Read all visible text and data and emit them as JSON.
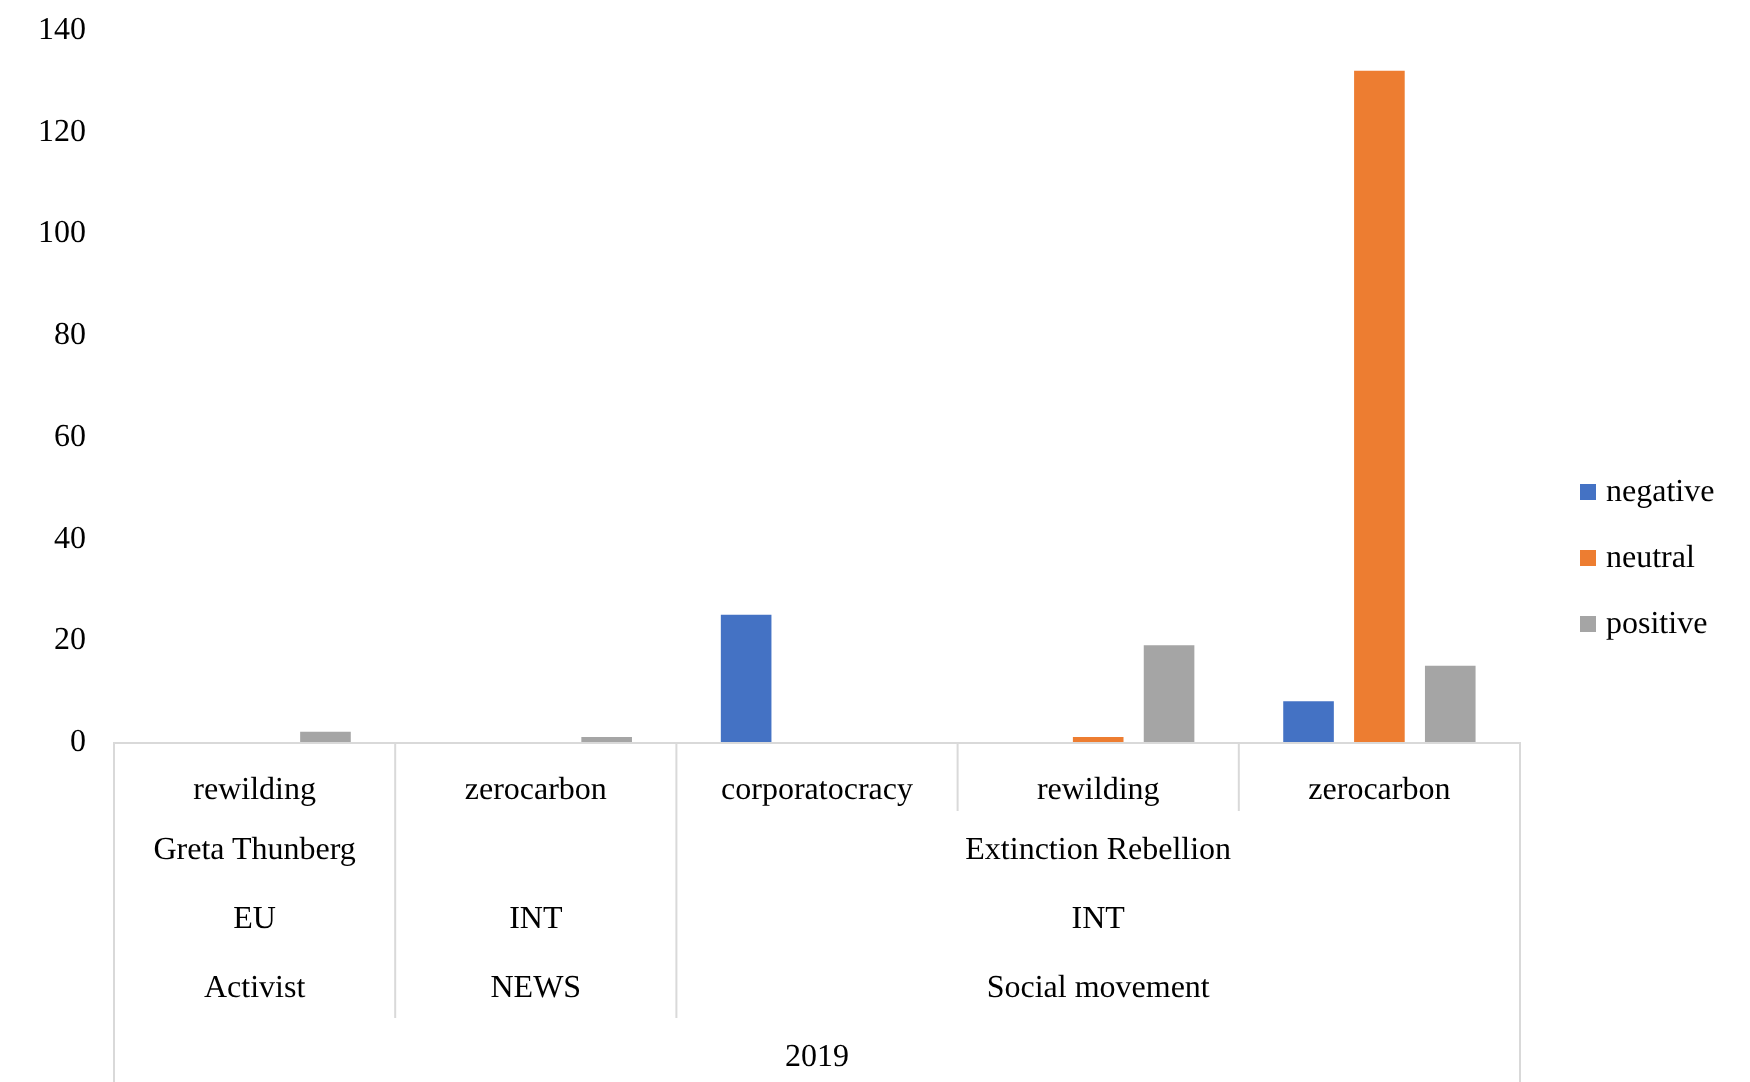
{
  "chart_data": {
    "type": "bar",
    "categories": [
      "rewilding",
      "zerocarbon",
      "corporatocracy",
      "rewilding",
      "zerocarbon"
    ],
    "series": [
      {
        "name": "negative",
        "color": "#4472c4",
        "values": [
          0,
          0,
          25,
          0,
          8
        ]
      },
      {
        "name": "neutral",
        "color": "#ed7d31",
        "values": [
          0,
          0,
          0,
          1,
          132
        ]
      },
      {
        "name": "positive",
        "color": "#a5a5a5",
        "values": [
          2,
          1,
          0,
          19,
          15
        ]
      }
    ],
    "annotations": [
      "Greta Thunberg",
      "Extinction Rebellion",
      "EU",
      "INT",
      "INT",
      "Activist",
      "NEWS",
      "Social movement",
      "2019"
    ],
    "ylim": [
      0,
      140
    ],
    "yticks": [
      0,
      20,
      40,
      60,
      80,
      100,
      120,
      140
    ],
    "grid": false,
    "legend": "right"
  }
}
